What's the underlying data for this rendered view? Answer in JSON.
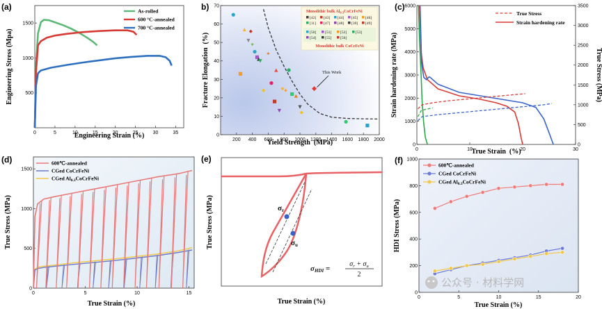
{
  "watermark": {
    "text": "公众号 · 材料学网"
  },
  "panels": {
    "a": {
      "label": "(a)",
      "xlabel": "Engineering Strain (%)",
      "ylabel": "Engineering Stress (Mpa)"
    },
    "b": {
      "label": "b)",
      "xlabel": "Yield Strength  (MPa)",
      "ylabel": "Fracture Elongation  (%)",
      "legend_title1": "Monolithic bulk Al",
      "legend_title1_sub": "0.3",
      "legend_title1_end": "CoCrFeNi",
      "legend_title2": "Monolithic bulk CoCrFeNi",
      "ref_row1": [
        "[42]",
        "[43]",
        "[44]",
        "[45]",
        "[46]"
      ],
      "ref_row2": [
        "[11]",
        "[47]",
        "[48]",
        "[39]",
        "[49]"
      ],
      "ref_row3": [
        "[50]",
        "[51]",
        "[52]",
        "[53]"
      ],
      "ref_row4": [
        "[54]",
        "[55]",
        "[56]"
      ],
      "annotation": "This Work"
    },
    "c": {
      "label": "(c)",
      "xlabel": "True Strain  (%)",
      "ylabel_left": "Strain hardening rate (MPa)",
      "ylabel_right": "True Stress (MPa)"
    },
    "d": {
      "label": "(d)",
      "xlabel": "True Strain (%)",
      "ylabel": "True Stress (MPa)"
    },
    "e": {
      "label": "(e)",
      "xlabel": "True Strain (%)",
      "ylabel": "True Stress (MPa)",
      "sigma_r": "σ",
      "sigma_r_sub": "r",
      "sigma_u": "σ",
      "sigma_u_sub": "u",
      "eq_lhs": "σ",
      "eq_lhs_sub": "HDI",
      "eq_num": "σ",
      "eq_num_r": "r",
      "eq_plus": " + σ",
      "eq_num_u": "u",
      "eq_den": "2"
    },
    "f": {
      "label": "(f)",
      "xlabel": "True Strain (%)",
      "ylabel": "HDI Stress (MPa)"
    }
  },
  "chart_data": [
    {
      "panel": "a",
      "type": "line",
      "xlabel": "Engineering Strain (%)",
      "ylabel": "Engineering Stress (Mpa)",
      "xlim": [
        0,
        37
      ],
      "ylim": [
        0,
        1750
      ],
      "xticks": [
        0,
        5,
        10,
        15,
        20,
        25,
        30,
        35
      ],
      "yticks": [
        500,
        1000,
        1500
      ],
      "legend_position": "top-right",
      "series": [
        {
          "name": "As-rolled",
          "color": "#5cb876",
          "x": [
            0,
            0.3,
            0.8,
            1.5,
            2.2,
            3.5,
            5,
            7,
            9,
            11,
            13,
            14.5,
            15.5
          ],
          "y": [
            0,
            900,
            1350,
            1510,
            1545,
            1540,
            1510,
            1470,
            1420,
            1360,
            1290,
            1230,
            1180
          ]
        },
        {
          "name": "600 °C-annealed",
          "color": "#d63a35",
          "x": [
            0,
            0.3,
            0.8,
            1.5,
            3,
            5,
            8,
            12,
            16,
            20,
            23,
            24.5,
            25.3
          ],
          "y": [
            0,
            800,
            1180,
            1240,
            1290,
            1320,
            1345,
            1370,
            1385,
            1395,
            1395,
            1375,
            1330
          ]
        },
        {
          "name": "700 °C-annealed",
          "color": "#2d6fbf",
          "x": [
            0,
            0.3,
            0.8,
            1.5,
            4,
            8,
            12,
            16,
            20,
            24,
            28,
            31,
            32.5,
            33.5,
            34
          ],
          "y": [
            0,
            600,
            780,
            820,
            860,
            900,
            935,
            965,
            995,
            1015,
            1030,
            1030,
            1010,
            960,
            890
          ]
        }
      ]
    },
    {
      "panel": "b",
      "type": "scatter",
      "xlabel": "Yield Strength (MPa)",
      "ylabel": "Fracture Elongation (%)",
      "xlim": [
        0,
        2000
      ],
      "ylim": [
        0,
        70
      ],
      "xticks": [
        200,
        400,
        600,
        800,
        1000,
        1200,
        1400,
        1600,
        1800,
        2000
      ],
      "yticks": [
        0,
        10,
        20,
        30,
        40,
        50,
        60,
        70
      ],
      "boundary": {
        "x": [
          540,
          600,
          700,
          800,
          900,
          1000,
          1100,
          1250,
          1400,
          1600,
          1800,
          2000
        ],
        "y": [
          68,
          58,
          46,
          37,
          29,
          22,
          16.5,
          11.5,
          9.5,
          8.8,
          8.6,
          8.5
        ]
      },
      "points": [
        {
          "x": 160,
          "y": 65,
          "color": "#29a3c9"
        },
        {
          "x": 250,
          "y": 33,
          "color": "#f39c1f"
        },
        {
          "x": 300,
          "y": 57,
          "color": "#f5b63a"
        },
        {
          "x": 350,
          "y": 51,
          "color": "#8a8a8a"
        },
        {
          "x": 380,
          "y": 56,
          "color": "#c0392b"
        },
        {
          "x": 400,
          "y": 49,
          "color": "#6cc04a"
        },
        {
          "x": 430,
          "y": 45,
          "color": "#29a3c9"
        },
        {
          "x": 460,
          "y": 42,
          "color": "#a855c7"
        },
        {
          "x": 480,
          "y": 41,
          "color": "#3a3a3a"
        },
        {
          "x": 500,
          "y": 40,
          "color": "#27ae60"
        },
        {
          "x": 540,
          "y": 24,
          "color": "#f1c40f"
        },
        {
          "x": 600,
          "y": 44,
          "color": "#e67e22"
        },
        {
          "x": 640,
          "y": 28,
          "color": "#e91e63"
        },
        {
          "x": 680,
          "y": 18,
          "color": "#c0392b"
        },
        {
          "x": 700,
          "y": 35,
          "color": "#e74c3c"
        },
        {
          "x": 740,
          "y": 13,
          "color": "#8e44ad"
        },
        {
          "x": 780,
          "y": 25,
          "color": "#f5b63a"
        },
        {
          "x": 820,
          "y": 24,
          "color": "#f39c1f"
        },
        {
          "x": 860,
          "y": 35,
          "color": "#27ae60"
        },
        {
          "x": 900,
          "y": 22,
          "color": "#2ecc71"
        },
        {
          "x": 950,
          "y": 21,
          "color": "#e67e22"
        },
        {
          "x": 1000,
          "y": 15,
          "color": "#555555"
        },
        {
          "x": 1020,
          "y": 12,
          "color": "#f1c40f"
        },
        {
          "x": 1180,
          "y": 25,
          "color": "#e53935"
        },
        {
          "x": 1580,
          "y": 7,
          "color": "#2ecc71"
        },
        {
          "x": 1850,
          "y": 5,
          "color": "#29a3c9"
        }
      ],
      "this_work": {
        "x": 1180,
        "y": 25
      }
    },
    {
      "panel": "c",
      "type": "line",
      "xlabel": "True Strain (%)",
      "ylabel": "Strain hardening rate (MPa)",
      "ylabel_right": "True Stress (MPa)",
      "xlim": [
        0,
        30
      ],
      "ylim": [
        0,
        6000
      ],
      "ylim_right": [
        0,
        3500
      ],
      "xticks": [
        0,
        10,
        20,
        30
      ],
      "yticks": [
        0,
        1000,
        2000,
        3000,
        4000,
        5000,
        6000
      ],
      "yticks_right": [
        0,
        500,
        1000,
        1500,
        2000,
        2500,
        3000,
        3500
      ],
      "legend_position": "top-right",
      "legend": [
        "True Stress",
        "Strain hardening rate"
      ],
      "hardening": [
        {
          "color": "#2ca64a",
          "x": [
            0.3,
            0.5,
            0.8,
            1.0,
            1.3,
            1.6,
            2.0
          ],
          "y": [
            6000,
            4500,
            3000,
            1800,
            900,
            300,
            0
          ]
        },
        {
          "color": "#d63a35",
          "x": [
            0.5,
            0.8,
            1.2,
            2,
            4,
            8,
            12,
            15,
            17,
            18.5,
            19.2,
            19.7,
            20.0
          ],
          "y": [
            6000,
            4000,
            3300,
            2800,
            2400,
            2100,
            1950,
            1800,
            1650,
            1400,
            900,
            300,
            0
          ]
        },
        {
          "color": "#3a64c8",
          "x": [
            0.6,
            0.9,
            1.3,
            1.8,
            2.3,
            2.5,
            4,
            8,
            12,
            16,
            20,
            22.5,
            24,
            25,
            25.8
          ],
          "y": [
            6000,
            3500,
            2900,
            2800,
            2920,
            2900,
            2600,
            2250,
            2100,
            1950,
            1800,
            1600,
            1100,
            500,
            0
          ]
        }
      ],
      "true_stress": [
        {
          "color": "#2ca64a",
          "x": [
            0.2,
            0.8,
            1.5,
            2.2,
            3.0
          ],
          "y": [
            700,
            850,
            880,
            900,
            920
          ]
        },
        {
          "color": "#d63a35",
          "x": [
            0.2,
            1,
            3,
            6,
            10,
            14,
            18,
            20.5
          ],
          "y": [
            900,
            1000,
            1050,
            1100,
            1150,
            1200,
            1250,
            1280
          ]
        },
        {
          "color": "#3a64c8",
          "x": [
            0.2,
            1,
            4,
            8,
            12,
            16,
            20,
            24,
            25.5
          ],
          "y": [
            600,
            700,
            750,
            800,
            850,
            900,
            950,
            1000,
            1030
          ]
        }
      ]
    },
    {
      "panel": "d",
      "type": "line",
      "xlabel": "True Strain (%)",
      "ylabel": "True Stress (MPa)",
      "xlim": [
        0,
        15.5
      ],
      "ylim": [
        0,
        1650
      ],
      "xticks": [
        0,
        5,
        10,
        15
      ],
      "yticks": [
        0,
        500,
        1000,
        1500
      ],
      "legend_position": "top-left",
      "series": [
        {
          "name": "600℃-annealed",
          "color": "#e8797a",
          "envelope": {
            "x": [
              0,
              0.15,
              0.4,
              1,
              2,
              4,
              6,
              8,
              10,
              12,
              14,
              15.3
            ],
            "y": [
              0,
              900,
              1060,
              1120,
              1150,
              1200,
              1250,
              1300,
              1350,
              1400,
              1440,
              1480
            ]
          },
          "unload_at": [
            0.8,
            1.7,
            2.7,
            3.7,
            4.8,
            5.9,
            7.0,
            8.1,
            9.2,
            10.3,
            11.4,
            12.6,
            13.8,
            14.9
          ]
        },
        {
          "name": "CGed CoCrFeNi",
          "color": "#6b79c9",
          "envelope": {
            "x": [
              0,
              0.15,
              0.5,
              1,
              2,
              4,
              6,
              8,
              10,
              12,
              14,
              15.3
            ],
            "y": [
              0,
              230,
              250,
              260,
              275,
              300,
              325,
              350,
              380,
              410,
              450,
              480
            ]
          }
        },
        {
          "name": "CGed Al0.3CoCrFeNi",
          "color": "#f2c84b",
          "envelope": {
            "x": [
              0,
              0.15,
              0.5,
              1,
              2,
              4,
              6,
              8,
              10,
              12,
              14,
              15.3
            ],
            "y": [
              0,
              240,
              265,
              275,
              290,
              320,
              345,
              370,
              400,
              430,
              470,
              510
            ]
          }
        }
      ]
    },
    {
      "panel": "e",
      "type": "line",
      "xlabel": "True Strain (%)",
      "ylabel": "True Stress (MPa)",
      "annotations": [
        "σr",
        "σu",
        "σHDI = (σr + σu) / 2"
      ]
    },
    {
      "panel": "f",
      "type": "line",
      "xlabel": "True Strain (%)",
      "ylabel": "HDI Stress (MPa)",
      "xlim": [
        0,
        20
      ],
      "ylim": [
        0,
        1000
      ],
      "xticks": [
        0,
        5,
        10,
        15,
        20
      ],
      "yticks": [
        0,
        200,
        400,
        600,
        800,
        1000
      ],
      "legend_position": "top-left",
      "series": [
        {
          "name": "600℃-annealed",
          "color": "#f07a7a",
          "x": [
            2,
            4,
            6,
            8,
            10,
            12,
            14,
            16,
            18
          ],
          "y": [
            630,
            680,
            720,
            750,
            780,
            790,
            800,
            810,
            810
          ]
        },
        {
          "name": "CGed CoCrFeNi",
          "color": "#6b7bd6",
          "x": [
            2,
            4,
            6,
            8,
            10,
            12,
            14,
            16,
            18
          ],
          "y": [
            140,
            170,
            200,
            220,
            240,
            260,
            280,
            310,
            330
          ]
        },
        {
          "name": "CGed Al0.3CoCrFeNi",
          "color": "#f2c84b",
          "x": [
            2,
            4,
            6,
            8,
            10,
            12,
            14,
            16,
            18
          ],
          "y": [
            160,
            180,
            200,
            210,
            230,
            250,
            270,
            290,
            300
          ]
        }
      ]
    }
  ]
}
